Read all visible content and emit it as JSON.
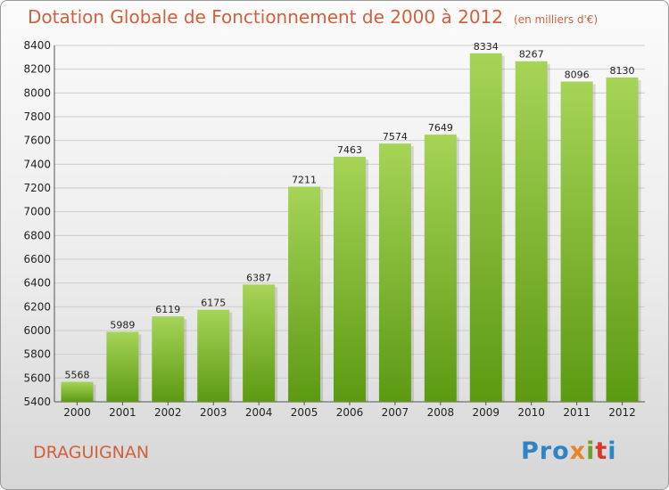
{
  "title": "Dotation Globale de Fonctionnement de 2000 à 2012",
  "unit": "(en milliers d'€)",
  "city": "DRAGUIGNAN",
  "logo": {
    "p1": "Pro",
    "p2": "x",
    "p3": "i",
    "p4": "t",
    "p5": "i"
  },
  "colors": {
    "title": "#d2603c",
    "bar_top": "#a6d457",
    "bar_bottom": "#5c9a12",
    "grid": "#cccccc"
  },
  "chart_data": {
    "type": "bar",
    "title": "Dotation Globale de Fonctionnement de 2000 à 2012",
    "xlabel": "",
    "ylabel": "",
    "categories": [
      "2000",
      "2001",
      "2002",
      "2003",
      "2004",
      "2005",
      "2006",
      "2007",
      "2008",
      "2009",
      "2010",
      "2011",
      "2012"
    ],
    "values": [
      5568,
      5989,
      6119,
      6175,
      6387,
      7211,
      7463,
      7574,
      7649,
      8334,
      8267,
      8096,
      8130
    ],
    "ylim": [
      5400,
      8400
    ],
    "yticks": [
      5400,
      5600,
      5800,
      6000,
      6200,
      6400,
      6600,
      6800,
      7000,
      7200,
      7400,
      7600,
      7800,
      8000,
      8200,
      8400
    ],
    "grid": true,
    "legend": "none"
  }
}
